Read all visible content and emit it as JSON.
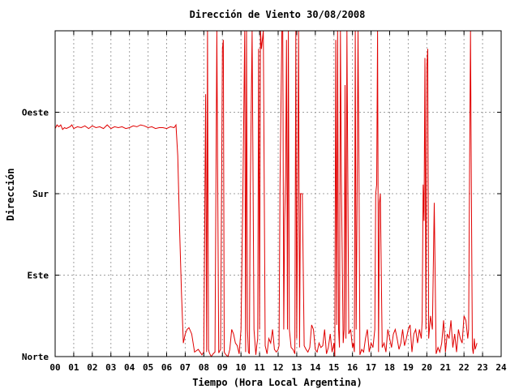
{
  "chart_data": {
    "type": "line",
    "title": "Dirección de Viento 30/08/2008",
    "xlabel": "Tiempo (Hora Local Argentina)",
    "ylabel": "Dirección",
    "x_ticks": [
      "00",
      "01",
      "02",
      "03",
      "04",
      "05",
      "06",
      "07",
      "08",
      "09",
      "10",
      "11",
      "12",
      "13",
      "14",
      "15",
      "16",
      "17",
      "18",
      "19",
      "20",
      "21",
      "22",
      "23",
      "24"
    ],
    "y_ticks": [
      "Norte",
      "Este",
      "Sur",
      "Oeste"
    ],
    "y_tick_values": [
      0,
      90,
      180,
      270
    ],
    "xlim": [
      0,
      24
    ],
    "ylim": [
      0,
      360
    ],
    "grid": true,
    "series_color": "#e00000",
    "series": [
      {
        "x": [
          0.0,
          0.1,
          0.2,
          0.3,
          0.4,
          0.5,
          0.6,
          0.7,
          0.8,
          0.9,
          1.0,
          1.2,
          1.4,
          1.6,
          1.8,
          2.0,
          2.2,
          2.4,
          2.6,
          2.8,
          3.0,
          3.2,
          3.4,
          3.6,
          3.8,
          4.0,
          4.2,
          4.4,
          4.6,
          4.8,
          5.0,
          5.2,
          5.4,
          5.6,
          5.8,
          6.0,
          6.2,
          6.4,
          6.5,
          6.6,
          6.7,
          6.8,
          6.9,
          7.0,
          7.1,
          7.2,
          7.35,
          7.5,
          7.7,
          7.9,
          8.0,
          8.1,
          8.15,
          8.2,
          8.25,
          8.3,
          8.4,
          8.5,
          8.6,
          8.7,
          8.8,
          8.9,
          9.0,
          9.05,
          9.1,
          9.15,
          9.2,
          9.3,
          9.4,
          9.5,
          9.6,
          9.7,
          9.8,
          9.9,
          10.0,
          10.1,
          10.2,
          10.25,
          10.3,
          10.35,
          10.4,
          10.45,
          10.5,
          10.6,
          10.7,
          10.8,
          10.85,
          10.9,
          10.95,
          11.0,
          11.05,
          11.1,
          11.2,
          11.3,
          11.4,
          11.5,
          11.6,
          11.7,
          11.8,
          11.9,
          12.0,
          12.05,
          12.1,
          12.2,
          12.25,
          12.3,
          12.35,
          12.4,
          12.45,
          12.5,
          12.55,
          12.6,
          12.7,
          12.8,
          12.9,
          12.95,
          13.0,
          13.05,
          13.1,
          13.15,
          13.2,
          13.3,
          13.4,
          13.5,
          13.6,
          13.7,
          13.8,
          13.9,
          14.0,
          14.1,
          14.2,
          14.3,
          14.4,
          14.5,
          14.6,
          14.7,
          14.8,
          14.9,
          15.0,
          15.05,
          15.1,
          15.15,
          15.2,
          15.25,
          15.3,
          15.35,
          15.4,
          15.5,
          15.55,
          15.6,
          15.65,
          15.7,
          15.8,
          15.9,
          16.0,
          16.05,
          16.1,
          16.15,
          16.2,
          16.25,
          16.3,
          16.35,
          16.4,
          16.5,
          16.6,
          16.7,
          16.8,
          16.9,
          17.0,
          17.1,
          17.2,
          17.25,
          17.3,
          17.35,
          17.4,
          17.45,
          17.5,
          17.6,
          17.7,
          17.8,
          17.9,
          18.0,
          18.1,
          18.2,
          18.3,
          18.4,
          18.5,
          18.6,
          18.7,
          18.8,
          18.9,
          19.0,
          19.1,
          19.2,
          19.3,
          19.4,
          19.5,
          19.6,
          19.7,
          19.75,
          19.8,
          19.85,
          19.9,
          19.95,
          20.0,
          20.05,
          20.1,
          20.2,
          20.3,
          20.4,
          20.5,
          20.6,
          20.7,
          20.8,
          20.9,
          21.0,
          21.1,
          21.2,
          21.3,
          21.4,
          21.5,
          21.6,
          21.7,
          21.8,
          21.9,
          22.0,
          22.1,
          22.2,
          22.25,
          22.3,
          22.35,
          22.4,
          22.45,
          22.5,
          22.55,
          22.6,
          22.7
        ],
        "y": [
          252,
          256,
          254,
          256,
          251,
          253,
          252,
          253,
          254,
          256,
          252,
          254,
          253,
          255,
          252,
          255,
          253,
          254,
          252,
          256,
          252,
          254,
          253,
          254,
          252,
          253,
          255,
          254,
          256,
          255,
          253,
          254,
          252,
          253,
          253,
          252,
          254,
          253,
          256,
          222,
          140,
          70,
          15,
          25,
          30,
          32,
          25,
          5,
          8,
          2,
          5,
          290,
          5,
          360,
          8,
          4,
          0,
          3,
          5,
          360,
          4,
          8,
          340,
          350,
          5,
          3,
          2,
          0,
          8,
          30,
          25,
          15,
          12,
          3,
          30,
          180,
          360,
          5,
          360,
          30,
          5,
          3,
          180,
          360,
          30,
          2,
          12,
          20,
          340,
          30,
          360,
          340,
          360,
          12,
          3,
          20,
          15,
          30,
          8,
          5,
          8,
          12,
          190,
          360,
          360,
          30,
          150,
          200,
          350,
          30,
          360,
          30,
          10,
          8,
          3,
          360,
          20,
          180,
          360,
          10,
          180,
          180,
          12,
          8,
          5,
          10,
          35,
          30,
          8,
          5,
          15,
          10,
          12,
          30,
          3,
          10,
          25,
          5,
          15,
          0,
          350,
          35,
          360,
          30,
          10,
          360,
          200,
          15,
          30,
          300,
          20,
          360,
          25,
          30,
          10,
          15,
          5,
          360,
          30,
          180,
          360,
          200,
          2,
          8,
          5,
          20,
          30,
          5,
          15,
          10,
          30,
          180,
          190,
          360,
          5,
          170,
          180,
          10,
          15,
          5,
          30,
          20,
          10,
          25,
          30,
          20,
          8,
          15,
          30,
          12,
          20,
          30,
          35,
          5,
          25,
          30,
          15,
          30,
          20,
          40,
          190,
          150,
          330,
          30,
          320,
          340,
          20,
          45,
          30,
          170,
          3,
          10,
          5,
          15,
          40,
          5,
          25,
          20,
          40,
          10,
          25,
          5,
          30,
          20,
          15,
          45,
          40,
          20,
          30,
          200,
          360,
          180,
          10,
          3,
          20,
          8,
          15
        ]
      }
    ]
  }
}
